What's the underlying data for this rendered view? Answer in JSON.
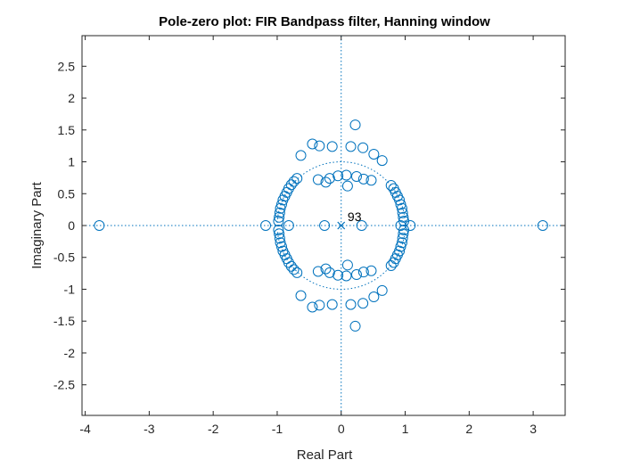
{
  "chart_data": {
    "type": "scatter",
    "title": "Pole-zero plot: FIR Bandpass filter, Hanning window",
    "xlabel": "Real Part",
    "ylabel": "Imaginary Part",
    "xlim": [
      -4.05,
      3.5
    ],
    "ylim": [
      -2.98,
      2.98
    ],
    "x_ticks": [
      -4,
      -3,
      -2,
      -1,
      0,
      1,
      2,
      3
    ],
    "x_tick_labels": [
      "-4",
      "-3",
      "-2",
      "-1",
      "0",
      "1",
      "2",
      "3"
    ],
    "y_ticks": [
      2.5,
      2,
      1.5,
      1,
      0.5,
      0,
      -0.5,
      -1,
      -1.5,
      -2,
      -2.5
    ],
    "y_tick_labels": [
      "2.5",
      "2",
      "1.5",
      "1",
      "0.5",
      "0",
      "-0.5",
      "-1",
      "-1.5",
      "-2",
      "-2.5"
    ],
    "grid": false,
    "unit_circle": true,
    "color": "#0072BD",
    "poles": [
      {
        "x": 0,
        "y": 0
      }
    ],
    "annotation": {
      "text": "93",
      "x": 0.1,
      "y": 0.07
    },
    "zeros": [
      {
        "x": -3.78,
        "y": 0
      },
      {
        "x": 3.15,
        "y": 0
      },
      {
        "x": -1.18,
        "y": 0
      },
      {
        "x": -0.82,
        "y": 0
      },
      {
        "x": -0.26,
        "y": 0
      },
      {
        "x": 0.32,
        "y": 0
      },
      {
        "x": 0.93,
        "y": 0
      },
      {
        "x": 1.08,
        "y": 0
      },
      {
        "x": 0.22,
        "y": 1.58
      },
      {
        "x": 0.22,
        "y": -1.58
      },
      {
        "x": -0.63,
        "y": 1.1
      },
      {
        "x": -0.63,
        "y": -1.1
      },
      {
        "x": -0.45,
        "y": 1.28
      },
      {
        "x": -0.45,
        "y": -1.28
      },
      {
        "x": -0.34,
        "y": 1.25
      },
      {
        "x": -0.34,
        "y": -1.25
      },
      {
        "x": -0.14,
        "y": 1.24
      },
      {
        "x": -0.14,
        "y": -1.24
      },
      {
        "x": 0.15,
        "y": 1.24
      },
      {
        "x": 0.15,
        "y": -1.24
      },
      {
        "x": 0.34,
        "y": 1.22
      },
      {
        "x": 0.34,
        "y": -1.22
      },
      {
        "x": 0.51,
        "y": 1.12
      },
      {
        "x": 0.51,
        "y": -1.12
      },
      {
        "x": 0.64,
        "y": 1.02
      },
      {
        "x": 0.64,
        "y": -1.02
      },
      {
        "x": -0.36,
        "y": 0.72
      },
      {
        "x": -0.36,
        "y": -0.72
      },
      {
        "x": -0.24,
        "y": 0.68
      },
      {
        "x": -0.24,
        "y": -0.68
      },
      {
        "x": -0.18,
        "y": 0.74
      },
      {
        "x": -0.18,
        "y": -0.74
      },
      {
        "x": -0.05,
        "y": 0.78
      },
      {
        "x": -0.05,
        "y": -0.78
      },
      {
        "x": 0.08,
        "y": 0.79
      },
      {
        "x": 0.08,
        "y": -0.79
      },
      {
        "x": 0.1,
        "y": 0.62
      },
      {
        "x": 0.1,
        "y": -0.62
      },
      {
        "x": 0.24,
        "y": 0.77
      },
      {
        "x": 0.24,
        "y": -0.77
      },
      {
        "x": 0.35,
        "y": 0.73
      },
      {
        "x": 0.35,
        "y": -0.73
      },
      {
        "x": 0.47,
        "y": 0.71
      },
      {
        "x": 0.47,
        "y": -0.71
      },
      {
        "x": -0.69,
        "y": 0.74
      },
      {
        "x": -0.69,
        "y": -0.74
      },
      {
        "x": -0.74,
        "y": 0.69
      },
      {
        "x": -0.74,
        "y": -0.69
      },
      {
        "x": -0.78,
        "y": 0.64
      },
      {
        "x": -0.78,
        "y": -0.64
      },
      {
        "x": -0.82,
        "y": 0.58
      },
      {
        "x": -0.82,
        "y": -0.58
      },
      {
        "x": -0.85,
        "y": 0.52
      },
      {
        "x": -0.85,
        "y": -0.52
      },
      {
        "x": -0.88,
        "y": 0.46
      },
      {
        "x": -0.88,
        "y": -0.46
      },
      {
        "x": -0.91,
        "y": 0.4
      },
      {
        "x": -0.91,
        "y": -0.4
      },
      {
        "x": -0.93,
        "y": 0.33
      },
      {
        "x": -0.93,
        "y": -0.33
      },
      {
        "x": -0.95,
        "y": 0.27
      },
      {
        "x": -0.95,
        "y": -0.27
      },
      {
        "x": -0.96,
        "y": 0.2
      },
      {
        "x": -0.96,
        "y": -0.2
      },
      {
        "x": -0.97,
        "y": 0.13
      },
      {
        "x": -0.97,
        "y": -0.13
      },
      {
        "x": -0.98,
        "y": 0.07
      },
      {
        "x": -0.98,
        "y": -0.07
      },
      {
        "x": 0.78,
        "y": 0.63
      },
      {
        "x": 0.78,
        "y": -0.63
      },
      {
        "x": 0.82,
        "y": 0.58
      },
      {
        "x": 0.82,
        "y": -0.58
      },
      {
        "x": 0.85,
        "y": 0.52
      },
      {
        "x": 0.85,
        "y": -0.52
      },
      {
        "x": 0.88,
        "y": 0.46
      },
      {
        "x": 0.88,
        "y": -0.46
      },
      {
        "x": 0.91,
        "y": 0.4
      },
      {
        "x": 0.91,
        "y": -0.4
      },
      {
        "x": 0.93,
        "y": 0.33
      },
      {
        "x": 0.93,
        "y": -0.33
      },
      {
        "x": 0.95,
        "y": 0.27
      },
      {
        "x": 0.95,
        "y": -0.27
      },
      {
        "x": 0.96,
        "y": 0.2
      },
      {
        "x": 0.96,
        "y": -0.2
      },
      {
        "x": 0.97,
        "y": 0.13
      },
      {
        "x": 0.97,
        "y": -0.13
      },
      {
        "x": 0.98,
        "y": 0.07
      },
      {
        "x": 0.98,
        "y": -0.07
      }
    ]
  }
}
